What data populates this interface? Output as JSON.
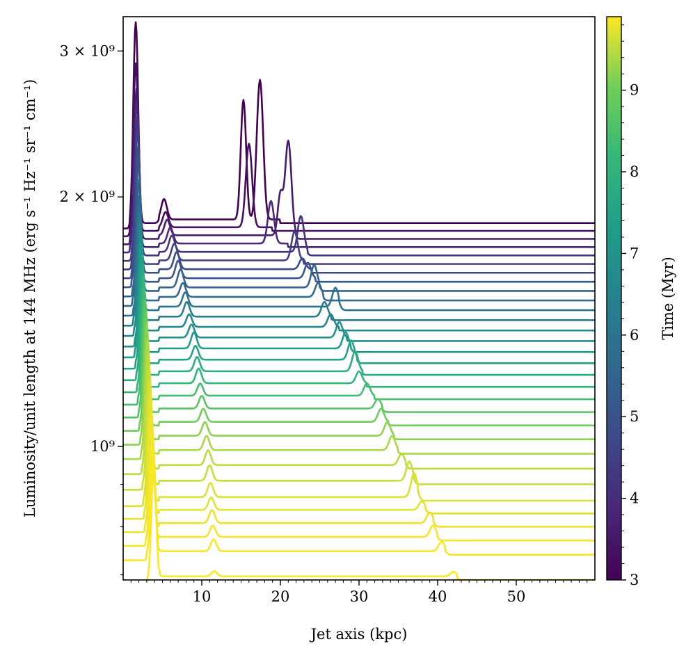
{
  "chart_data": {
    "type": "line",
    "xlabel": "Jet axis (kpc)",
    "ylabel": "Luminosity/unit length at 144 MHz (erg s⁻¹ Hz⁻¹ sr⁻¹ cm⁻¹)",
    "yscale": "log",
    "xlim": [
      0,
      60
    ],
    "ylim": [
      690000000.0,
      3300000000.0
    ],
    "x_ticks": [
      10,
      20,
      30,
      40,
      50
    ],
    "x_tick_labels": [
      "10",
      "20",
      "30",
      "40",
      "50"
    ],
    "y_major_ticks": [
      1000000000.0,
      2000000000.0,
      3000000000.0
    ],
    "y_tick_labels": [
      "10⁹",
      "2 × 10⁹",
      "3 × 10⁹"
    ],
    "y_minor_ticks": [
      700000000.0,
      800000000.0,
      900000000.0,
      4000000000.0
    ],
    "colorbar": {
      "label": "Time (Myr)",
      "min": 3,
      "max": 9.9,
      "ticks": [
        3,
        4,
        5,
        6,
        7,
        8,
        9
      ],
      "tick_labels": [
        "3",
        "4",
        "5",
        "6",
        "7",
        "8",
        "9"
      ],
      "colormap": "viridis"
    },
    "series_description": "One curve per snapshot from t = 3.0 to 9.9 Myr; each curve is offset vertically (earlier times higher) and shows a core peak near 1.5–3.5 kpc and a hotspot peak whose position advances with time.",
    "series": [
      {
        "time": 3.0,
        "baseline": 1860000000.0,
        "core": {
          "x": 1.6,
          "peak": 3250000000.0
        },
        "knot": {
          "x": 5.2,
          "peak": 1970000000.0
        },
        "hotspot": {
          "x": 17.4,
          "peak": 2750000000.0
        },
        "secondary": {
          "x": 15.3,
          "peak": 2600000000.0
        },
        "end": 20.0
      },
      {
        "time": 3.3,
        "baseline": 1820000000.0,
        "core": {
          "x": 1.6,
          "peak": 2900000000.0
        },
        "knot": {
          "x": 5.4,
          "peak": 1900000000.0
        },
        "hotspot": {
          "x": 16.0,
          "peak": 2300000000.0
        },
        "end": 19.0
      },
      {
        "time": 3.6,
        "baseline": 1780000000.0,
        "core": {
          "x": 1.7,
          "peak": 2700000000.0
        },
        "knot": {
          "x": 5.6,
          "peak": 1860000000.0
        },
        "hotspot": {
          "x": 21.0,
          "peak": 2320000000.0
        },
        "secondary": {
          "x": 20.0,
          "peak": 2000000000.0
        },
        "end": 22.0
      },
      {
        "time": 3.9,
        "baseline": 1740000000.0,
        "core": {
          "x": 1.7,
          "peak": 2600000000.0
        },
        "knot": {
          "x": 6.0,
          "peak": 1820000000.0
        },
        "hotspot": {
          "x": 18.8,
          "peak": 1960000000.0
        },
        "end": 21.0
      },
      {
        "time": 4.2,
        "baseline": 1700000000.0,
        "core": {
          "x": 1.8,
          "peak": 2500000000.0
        },
        "knot": {
          "x": 6.2,
          "peak": 1780000000.0
        },
        "hotspot": {
          "x": 22.6,
          "peak": 1880000000.0
        },
        "end": 23.5
      },
      {
        "time": 4.5,
        "baseline": 1660000000.0,
        "core": {
          "x": 1.8,
          "peak": 2400000000.0
        },
        "knot": {
          "x": 6.5,
          "peak": 1740000000.0
        },
        "hotspot": {
          "x": 21.8,
          "peak": 1800000000.0
        },
        "end": 23.0
      },
      {
        "time": 4.8,
        "baseline": 1620000000.0,
        "core": {
          "x": 1.9,
          "peak": 2300000000.0
        },
        "knot": {
          "x": 6.8,
          "peak": 1700000000.0
        },
        "hotspot": {
          "x": 22.8,
          "peak": 1670000000.0
        },
        "end": 24.0
      },
      {
        "time": 5.1,
        "baseline": 1580000000.0,
        "core": {
          "x": 1.9,
          "peak": 2200000000.0
        },
        "knot": {
          "x": 7.0,
          "peak": 1660000000.0
        },
        "hotspot": {
          "x": 23.5,
          "peak": 1650000000.0
        },
        "end": 24.5
      },
      {
        "time": 5.4,
        "baseline": 1540000000.0,
        "core": {
          "x": 2.0,
          "peak": 2100000000.0
        },
        "knot": {
          "x": 7.3,
          "peak": 1620000000.0
        },
        "hotspot": {
          "x": 24.3,
          "peak": 1640000000.0
        },
        "end": 25.0
      },
      {
        "time": 5.7,
        "baseline": 1500000000.0,
        "core": {
          "x": 2.0,
          "peak": 2000000000.0
        },
        "knot": {
          "x": 7.6,
          "peak": 1560000000.0
        },
        "hotspot": {
          "x": 24.8,
          "peak": 1560000000.0
        },
        "end": 25.5
      },
      {
        "time": 6.0,
        "baseline": 1460000000.0,
        "core": {
          "x": 2.1,
          "peak": 1950000000.0
        },
        "knot": {
          "x": 7.9,
          "peak": 1520000000.0
        },
        "hotspot": {
          "x": 27.0,
          "peak": 1540000000.0
        },
        "end": 27.5
      },
      {
        "time": 6.3,
        "baseline": 1420000000.0,
        "core": {
          "x": 2.1,
          "peak": 1900000000.0
        },
        "knot": {
          "x": 8.1,
          "peak": 1480000000.0
        },
        "hotspot": {
          "x": 25.6,
          "peak": 1480000000.0
        },
        "end": 26.5
      },
      {
        "time": 6.6,
        "baseline": 1380000000.0,
        "core": {
          "x": 2.2,
          "peak": 1850000000.0
        },
        "knot": {
          "x": 8.4,
          "peak": 1430000000.0
        },
        "hotspot": {
          "x": 26.4,
          "peak": 1430000000.0
        },
        "end": 27.5
      },
      {
        "time": 6.9,
        "baseline": 1340000000.0,
        "core": {
          "x": 2.3,
          "peak": 1800000000.0
        },
        "knot": {
          "x": 8.7,
          "peak": 1390000000.0
        },
        "hotspot": {
          "x": 27.5,
          "peak": 1400000000.0
        },
        "end": 28.5
      },
      {
        "time": 7.2,
        "baseline": 1300000000.0,
        "core": {
          "x": 2.3,
          "peak": 1750000000.0
        },
        "knot": {
          "x": 9.0,
          "peak": 1360000000.0
        },
        "hotspot": {
          "x": 28.3,
          "peak": 1360000000.0
        },
        "end": 29.0
      },
      {
        "time": 7.5,
        "baseline": 1260000000.0,
        "core": {
          "x": 2.4,
          "peak": 1700000000.0
        },
        "knot": {
          "x": 9.2,
          "peak": 1310000000.0
        },
        "hotspot": {
          "x": 29.0,
          "peak": 1330000000.0
        },
        "end": 29.8
      },
      {
        "time": 7.8,
        "baseline": 1220000000.0,
        "core": {
          "x": 2.5,
          "peak": 1650000000.0
        },
        "knot": {
          "x": 9.4,
          "peak": 1270000000.0
        },
        "hotspot": {
          "x": 29.5,
          "peak": 1290000000.0
        },
        "end": 30.5
      },
      {
        "time": 8.1,
        "baseline": 1180000000.0,
        "core": {
          "x": 2.6,
          "peak": 1600000000.0
        },
        "knot": {
          "x": 9.6,
          "peak": 1230000000.0
        },
        "hotspot": {
          "x": 30.0,
          "peak": 1220000000.0
        },
        "end": 31.0
      },
      {
        "time": 8.4,
        "baseline": 1140000000.0,
        "core": {
          "x": 2.7,
          "peak": 1550000000.0
        },
        "knot": {
          "x": 9.8,
          "peak": 1180000000.0
        },
        "hotspot": {
          "x": 31.0,
          "peak": 1180000000.0
        },
        "end": 32.0
      },
      {
        "time": 8.7,
        "baseline": 1100000000.0,
        "core": {
          "x": 2.8,
          "peak": 1500000000.0
        },
        "knot": {
          "x": 10.0,
          "peak": 1140000000.0
        },
        "hotspot": {
          "x": 32.4,
          "peak": 1130000000.0
        },
        "end": 33.0
      },
      {
        "time": 9.0,
        "baseline": 1060000000.0,
        "core": {
          "x": 2.9,
          "peak": 1450000000.0
        },
        "knot": {
          "x": 10.2,
          "peak": 1100000000.0
        },
        "hotspot": {
          "x": 32.8,
          "peak": 1100000000.0
        },
        "end": 33.8
      },
      {
        "time": 9.2,
        "baseline": 1020000000.0,
        "core": {
          "x": 3.0,
          "peak": 1400000000.0
        },
        "knot": {
          "x": 10.4,
          "peak": 1060000000.0
        },
        "hotspot": {
          "x": 33.6,
          "peak": 1060000000.0
        },
        "end": 34.5
      },
      {
        "time": 9.4,
        "baseline": 980000000.0,
        "core": {
          "x": 3.1,
          "peak": 1350000000.0
        },
        "knot": {
          "x": 10.6,
          "peak": 1020000000.0
        },
        "hotspot": {
          "x": 34.2,
          "peak": 1020000000.0
        },
        "end": 35.0
      },
      {
        "time": 9.5,
        "baseline": 940000000.0,
        "core": {
          "x": 3.2,
          "peak": 1300000000.0
        },
        "knot": {
          "x": 10.8,
          "peak": 980000000.0
        },
        "hotspot": {
          "x": 35.4,
          "peak": 970000000.0
        },
        "end": 36.0
      },
      {
        "time": 9.6,
        "baseline": 900000000.0,
        "core": {
          "x": 3.3,
          "peak": 1250000000.0
        },
        "knot": {
          "x": 11.0,
          "peak": 940000000.0
        },
        "hotspot": {
          "x": 36.4,
          "peak": 950000000.0
        },
        "end": 37.0
      },
      {
        "time": 9.7,
        "baseline": 860000000.0,
        "core": {
          "x": 3.4,
          "peak": 1200000000.0
        },
        "knot": {
          "x": 11.1,
          "peak": 895000000.0
        },
        "hotspot": {
          "x": 37.0,
          "peak": 920000000.0
        },
        "end": 37.5
      },
      {
        "time": 9.75,
        "baseline": 830000000.0,
        "core": {
          "x": 3.5,
          "peak": 1150000000.0
        },
        "knot": {
          "x": 11.2,
          "peak": 860000000.0
        },
        "hotspot": {
          "x": 38.0,
          "peak": 850000000.0
        },
        "end": 38.5
      },
      {
        "time": 9.8,
        "baseline": 800000000.0,
        "core": {
          "x": 3.6,
          "peak": 1100000000.0
        },
        "knot": {
          "x": 11.3,
          "peak": 830000000.0
        },
        "hotspot": {
          "x": 39.0,
          "peak": 825000000.0
        },
        "end": 39.5
      },
      {
        "time": 9.85,
        "baseline": 770000000.0,
        "core": {
          "x": 3.7,
          "peak": 1050000000.0
        },
        "knot": {
          "x": 11.4,
          "peak": 795000000.0
        },
        "hotspot": {
          "x": 39.4,
          "peak": 795000000.0
        },
        "end": 40.0
      },
      {
        "time": 9.88,
        "baseline": 740000000.0,
        "core": {
          "x": 3.8,
          "peak": 1000000000.0
        },
        "knot": {
          "x": 11.5,
          "peak": 765000000.0
        },
        "hotspot": {
          "x": 40.5,
          "peak": 760000000.0
        },
        "end": 41.0
      },
      {
        "time": 9.9,
        "baseline": 690000000.0,
        "core": {
          "x": 3.9,
          "peak": 960000000.0
        },
        "knot": {
          "x": 11.6,
          "peak": 700000000.0
        },
        "hotspot": {
          "x": 42.0,
          "peak": 699000000.0
        },
        "end": 42.5
      }
    ]
  }
}
